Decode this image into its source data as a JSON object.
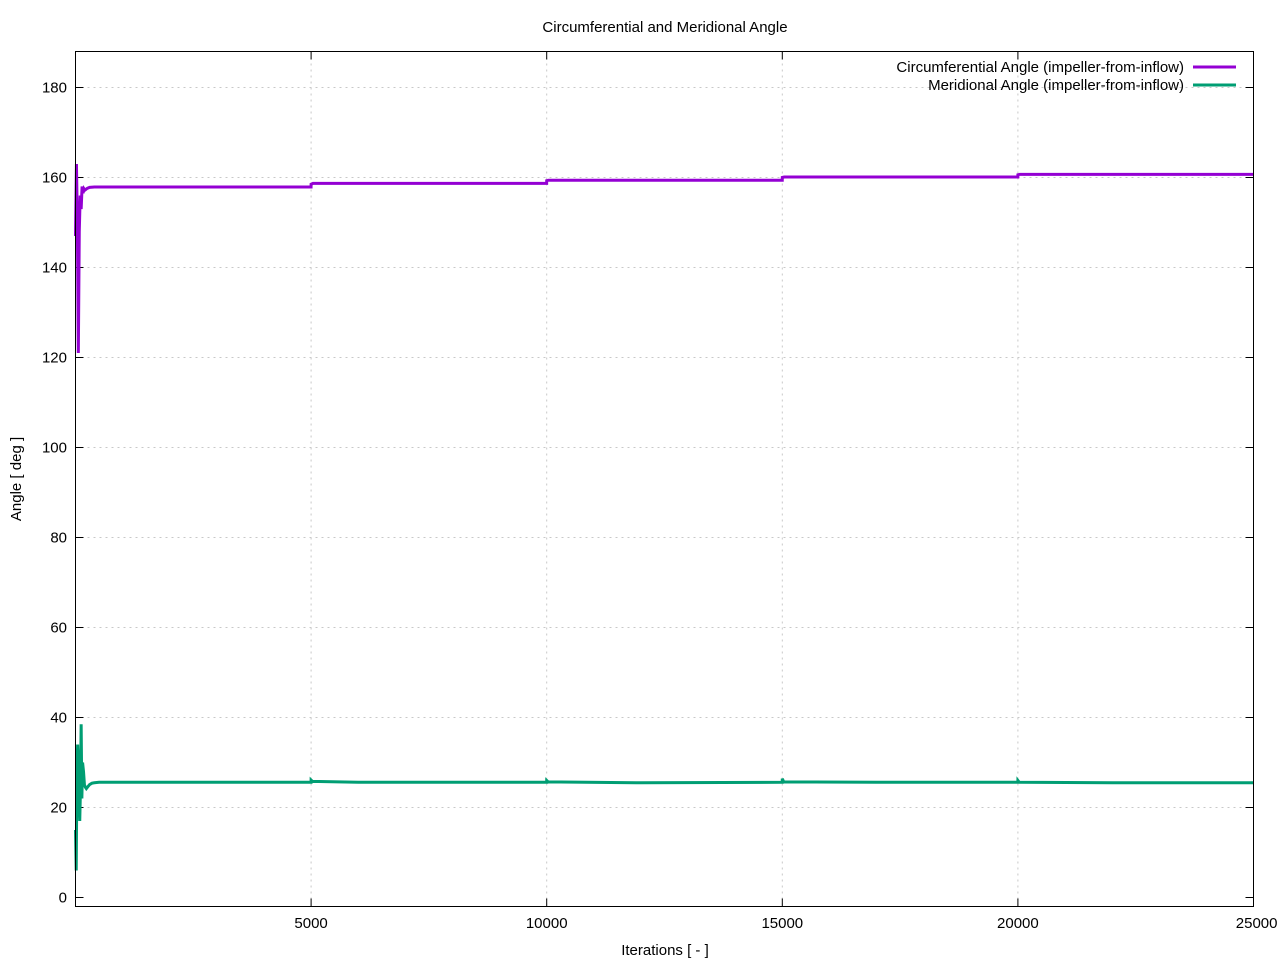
{
  "chart_data": {
    "type": "line",
    "title": "Circumferential and Meridional Angle",
    "xlabel": "Iterations [ - ]",
    "ylabel": "Angle [ deg ]",
    "xlim": [
      0,
      25000
    ],
    "ylim": [
      -2,
      188
    ],
    "xticks": [
      5000,
      10000,
      15000,
      20000,
      25000
    ],
    "yticks": [
      0,
      20,
      40,
      60,
      80,
      100,
      120,
      140,
      160,
      180
    ],
    "grid": true,
    "legend_position": "top-right",
    "series": [
      {
        "name": "Circumferential Angle (impeller-from-inflow)",
        "color": "#9400d3",
        "x": [
          0,
          20,
          40,
          60,
          80,
          100,
          120,
          140,
          160,
          180,
          200,
          250,
          300,
          400,
          500,
          700,
          1000,
          2000,
          3000,
          4000,
          4999,
          5000,
          5040,
          6000,
          8000,
          9999,
          10000,
          10040,
          12000,
          14999,
          15000,
          15040,
          17000,
          19999,
          20000,
          20040,
          22000,
          25000
        ],
        "y": [
          147,
          163,
          150,
          121,
          148,
          156,
          153,
          158,
          156.5,
          157.5,
          157.2,
          157.6,
          157.8,
          157.9,
          157.9,
          157.9,
          157.9,
          157.9,
          157.9,
          157.9,
          157.9,
          158.5,
          158.7,
          158.7,
          158.7,
          158.7,
          159.3,
          159.4,
          159.4,
          159.4,
          160.0,
          160.1,
          160.1,
          160.1,
          160.6,
          160.7,
          160.7,
          160.7
        ]
      },
      {
        "name": "Meridional Angle (impeller-from-inflow)",
        "color": "#009e73",
        "x": [
          0,
          15,
          30,
          45,
          60,
          75,
          90,
          105,
          120,
          135,
          150,
          170,
          190,
          210,
          230,
          260,
          300,
          350,
          400,
          500,
          700,
          1000,
          2000,
          3000,
          4000,
          4999,
          5000,
          5030,
          6000,
          9999,
          10000,
          10030,
          12000,
          14999,
          15000,
          15030,
          17000,
          19999,
          20000,
          20030,
          22000,
          25000
        ],
        "y": [
          15,
          6,
          27,
          34,
          30,
          22,
          17,
          24,
          38.5,
          22,
          30,
          28,
          25,
          24.5,
          24.2,
          24.6,
          25.1,
          25.4,
          25.5,
          25.6,
          25.6,
          25.6,
          25.6,
          25.6,
          25.6,
          25.6,
          26.1,
          25.8,
          25.6,
          25.6,
          26.0,
          25.7,
          25.5,
          25.6,
          26.4,
          25.7,
          25.6,
          25.6,
          26.0,
          25.6,
          25.5,
          25.5
        ]
      }
    ]
  }
}
